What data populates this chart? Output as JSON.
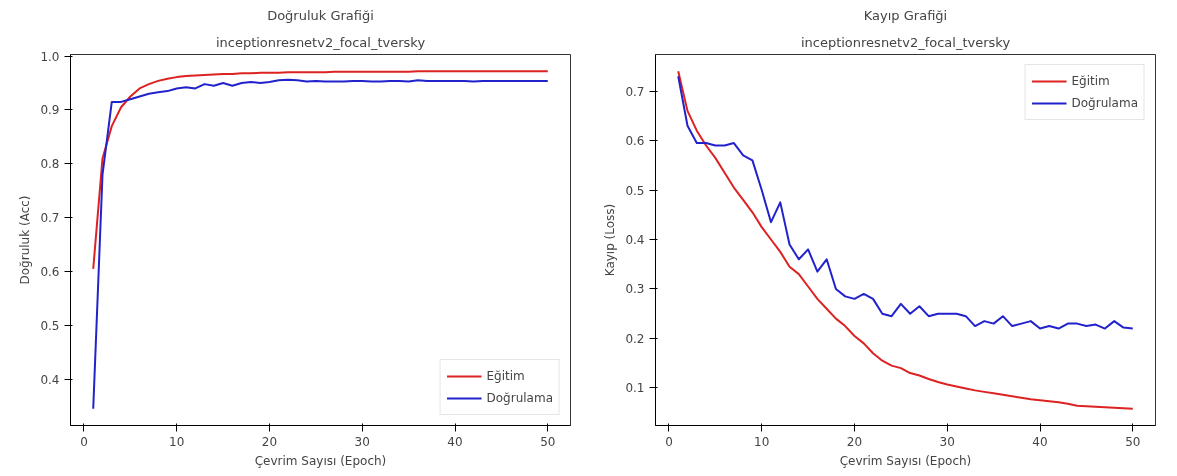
{
  "chart_data": [
    {
      "type": "line",
      "title": "Doğruluk Grafiği",
      "subtitle": "inceptionresnetv2_focal_tversky",
      "xlabel": "Çevrim Sayısı (Epoch)",
      "ylabel": "Doğruluk (Acc)",
      "xlim": [
        -1.45,
        52.45
      ],
      "ylim": [
        0.314,
        1.003
      ],
      "xticks": [
        0,
        10,
        20,
        30,
        40,
        50
      ],
      "yticks": [
        0.4,
        0.5,
        0.6,
        0.7,
        0.8,
        0.9,
        {
          "value": 1.0,
          "label": "1.0"
        }
      ],
      "grid": false,
      "legend": "bottom right",
      "marker": "none",
      "line_style": "solid",
      "x": [
        1,
        2,
        3,
        4,
        5,
        6,
        7,
        8,
        9,
        10,
        11,
        12,
        13,
        14,
        15,
        16,
        17,
        18,
        19,
        20,
        21,
        22,
        23,
        24,
        25,
        26,
        27,
        28,
        29,
        30,
        31,
        32,
        33,
        34,
        35,
        36,
        37,
        38,
        39,
        40,
        41,
        42,
        43,
        44,
        45,
        46,
        47,
        48,
        49,
        50
      ],
      "series": [
        {
          "name": "Eğitim",
          "color": "#dd2222",
          "values": [
            0.605,
            0.81,
            0.87,
            0.905,
            0.925,
            0.94,
            0.948,
            0.954,
            0.958,
            0.961,
            0.963,
            0.964,
            0.965,
            0.966,
            0.967,
            0.967,
            0.968,
            0.968,
            0.969,
            0.969,
            0.969,
            0.97,
            0.97,
            0.97,
            0.97,
            0.97,
            0.971,
            0.971,
            0.971,
            0.971,
            0.971,
            0.971,
            0.971,
            0.971,
            0.971,
            0.972,
            0.972,
            0.972,
            0.972,
            0.972,
            0.972,
            0.972,
            0.972,
            0.972,
            0.972,
            0.972,
            0.972,
            0.972,
            0.972,
            0.972
          ]
        },
        {
          "name": "Doğrulama",
          "color": "#2222cc",
          "values": [
            0.345,
            0.78,
            0.915,
            0.915,
            0.92,
            0.925,
            0.93,
            0.933,
            0.935,
            0.94,
            0.942,
            0.94,
            0.948,
            0.945,
            0.95,
            0.945,
            0.95,
            0.952,
            0.95,
            0.952,
            0.955,
            0.956,
            0.955,
            0.953,
            0.954,
            0.953,
            0.953,
            0.953,
            0.954,
            0.954,
            0.953,
            0.953,
            0.954,
            0.954,
            0.953,
            0.955,
            0.954,
            0.954,
            0.954,
            0.954,
            0.954,
            0.953,
            0.954,
            0.954,
            0.954,
            0.954,
            0.954,
            0.954,
            0.954,
            0.954
          ]
        }
      ]
    },
    {
      "type": "line",
      "title": "Kayıp Grafiği",
      "subtitle": "inceptionresnetv2_focal_tversky",
      "xlabel": "Çevrim Sayısı (Epoch)",
      "ylabel": "Kayıp (Loss)",
      "xlim": [
        -1.45,
        52.45
      ],
      "ylim": [
        0.024,
        0.774
      ],
      "xticks": [
        0,
        10,
        20,
        30,
        40,
        50
      ],
      "yticks": [
        0.1,
        0.2,
        0.3,
        0.4,
        0.5,
        0.6,
        0.7
      ],
      "grid": false,
      "legend": "top right",
      "marker": "none",
      "line_style": "solid",
      "x": [
        1,
        2,
        3,
        4,
        5,
        6,
        7,
        8,
        9,
        10,
        11,
        12,
        13,
        14,
        15,
        16,
        17,
        18,
        19,
        20,
        21,
        22,
        23,
        24,
        25,
        26,
        27,
        28,
        29,
        30,
        31,
        32,
        33,
        34,
        35,
        36,
        37,
        38,
        39,
        40,
        41,
        42,
        43,
        44,
        45,
        46,
        47,
        48,
        49,
        50
      ],
      "series": [
        {
          "name": "Eğitim",
          "color": "#dd2222",
          "values": [
            0.74,
            0.66,
            0.62,
            0.59,
            0.565,
            0.535,
            0.505,
            0.48,
            0.455,
            0.425,
            0.4,
            0.375,
            0.345,
            0.33,
            0.305,
            0.28,
            0.26,
            0.24,
            0.225,
            0.205,
            0.19,
            0.17,
            0.155,
            0.145,
            0.14,
            0.13,
            0.125,
            0.118,
            0.112,
            0.107,
            0.103,
            0.099,
            0.095,
            0.092,
            0.089,
            0.086,
            0.083,
            0.08,
            0.077,
            0.075,
            0.073,
            0.071,
            0.068,
            0.064,
            0.063,
            0.062,
            0.061,
            0.06,
            0.059,
            0.058
          ]
        },
        {
          "name": "Doğrulama",
          "color": "#2222cc",
          "values": [
            0.73,
            0.63,
            0.595,
            0.595,
            0.59,
            0.59,
            0.595,
            0.57,
            0.56,
            0.5,
            0.435,
            0.475,
            0.39,
            0.36,
            0.38,
            0.335,
            0.36,
            0.3,
            0.285,
            0.28,
            0.29,
            0.28,
            0.25,
            0.245,
            0.27,
            0.25,
            0.265,
            0.245,
            0.25,
            0.25,
            0.25,
            0.245,
            0.225,
            0.235,
            0.23,
            0.245,
            0.225,
            0.23,
            0.235,
            0.22,
            0.225,
            0.22,
            0.23,
            0.23,
            0.225,
            0.228,
            0.22,
            0.235,
            0.222,
            0.22
          ]
        }
      ]
    }
  ]
}
